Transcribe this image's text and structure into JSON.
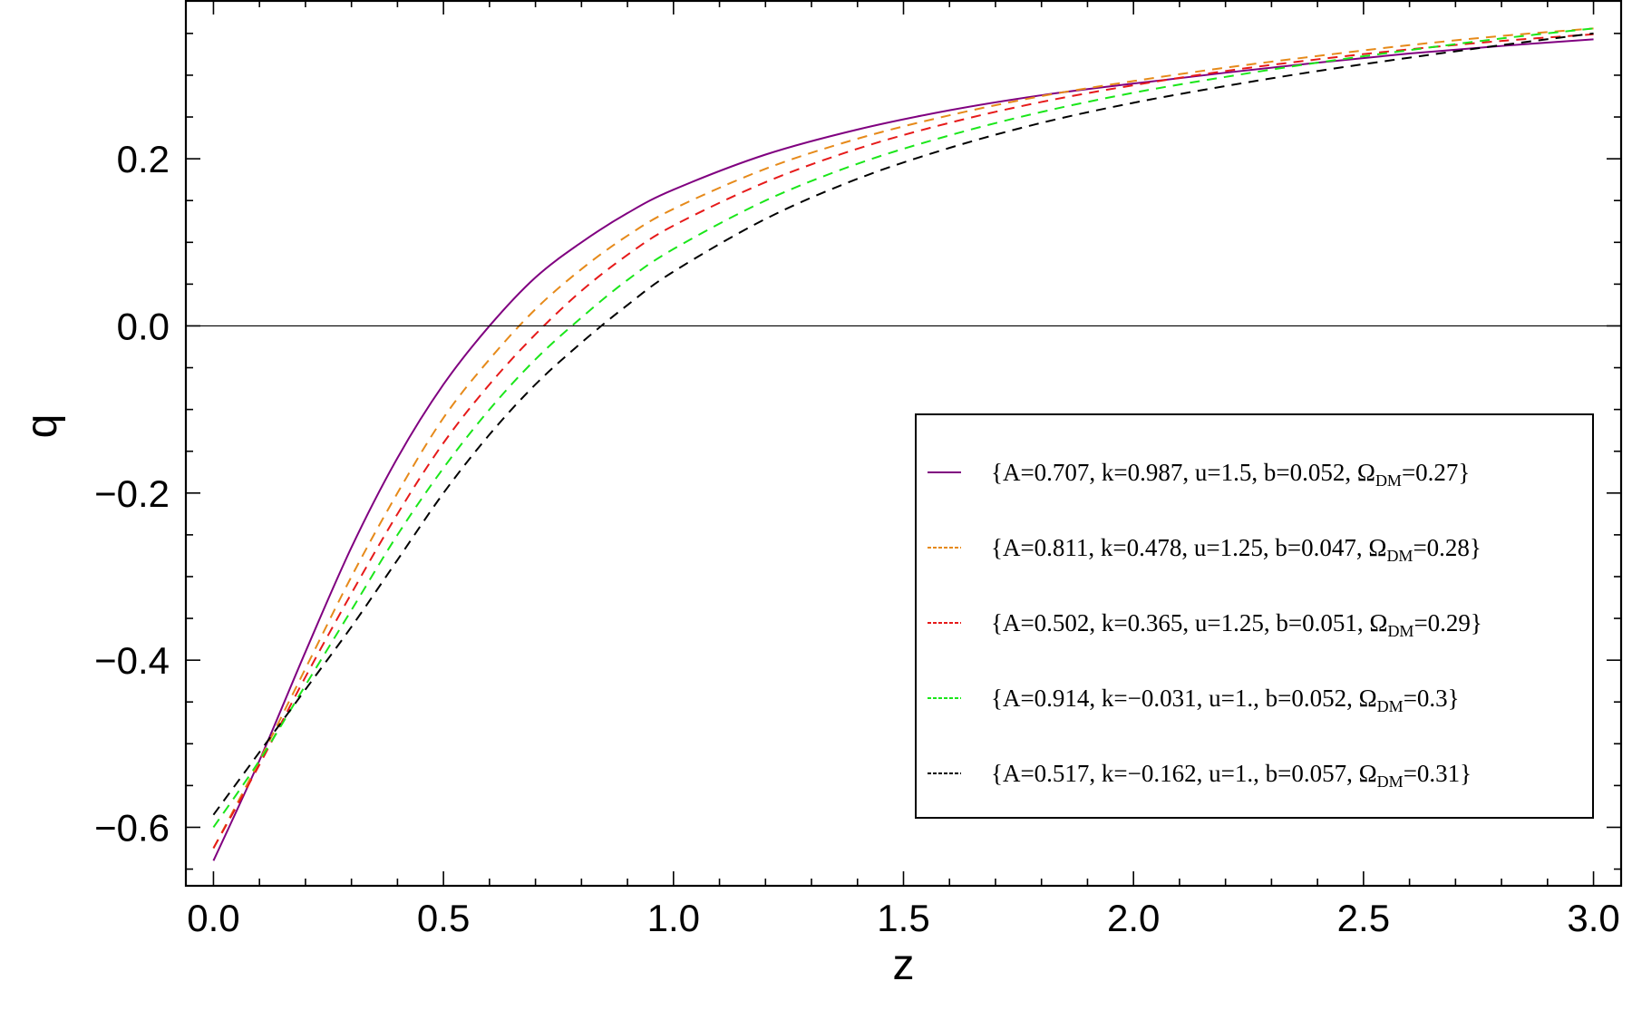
{
  "chart_data": {
    "type": "line",
    "title": "",
    "xlabel": "z",
    "ylabel": "q",
    "xlim": [
      -0.06,
      3.06
    ],
    "ylim": [
      -0.67,
      0.39
    ],
    "x_ticks": [
      {
        "value": 0.0,
        "label": "0.0"
      },
      {
        "value": 0.5,
        "label": "0.5"
      },
      {
        "value": 1.0,
        "label": "1.0"
      },
      {
        "value": 1.5,
        "label": "1.5"
      },
      {
        "value": 2.0,
        "label": "2.0"
      },
      {
        "value": 2.5,
        "label": "2.5"
      },
      {
        "value": 3.0,
        "label": "3.0"
      }
    ],
    "y_ticks": [
      {
        "value": -0.6,
        "label": "−0.6"
      },
      {
        "value": -0.4,
        "label": "−0.4"
      },
      {
        "value": -0.2,
        "label": "−0.2"
      },
      {
        "value": 0.0,
        "label": "0.0"
      },
      {
        "value": 0.2,
        "label": "0.2"
      }
    ],
    "grid": false,
    "reference_line": {
      "y": 0.0,
      "color": "#000000"
    },
    "legend": {
      "placement": "center-right"
    },
    "x": [
      0.0,
      0.1,
      0.2,
      0.3,
      0.4,
      0.5,
      0.6,
      0.7,
      0.8,
      0.9,
      1.0,
      1.2,
      1.4,
      1.6,
      1.8,
      2.0,
      2.2,
      2.4,
      2.6,
      2.8,
      3.0
    ],
    "series": [
      {
        "name": "{A=0.707, k=0.987, u=1.5, b=0.052, ΩDM=0.27}",
        "legend_parts": [
          {
            "text": "{A=0.707, k=0.987, u=1.5, b=0.052, Ω"
          },
          {
            "text": "DM",
            "sub": true
          },
          {
            "text": "=0.27}"
          }
        ],
        "color": "#800080",
        "dash": "solid",
        "values": [
          -0.64,
          -0.52,
          -0.39,
          -0.265,
          -0.158,
          -0.07,
          0.0,
          0.058,
          0.1,
          0.135,
          0.163,
          0.205,
          0.235,
          0.258,
          0.276,
          0.29,
          0.303,
          0.315,
          0.326,
          0.335,
          0.343
        ]
      },
      {
        "name": "{A=0.811, k=0.478, u=1.25, b=0.047, ΩDM=0.28}",
        "legend_parts": [
          {
            "text": "{A=0.811, k=0.478, u=1.25, b=0.047, Ω"
          },
          {
            "text": "DM",
            "sub": true
          },
          {
            "text": "=0.28}"
          }
        ],
        "color": "#e68a1a",
        "dash": "dashed",
        "values": [
          -0.625,
          -0.52,
          -0.41,
          -0.3,
          -0.2,
          -0.11,
          -0.04,
          0.02,
          0.068,
          0.108,
          0.14,
          0.188,
          0.224,
          0.252,
          0.275,
          0.293,
          0.309,
          0.323,
          0.336,
          0.347,
          0.356
        ]
      },
      {
        "name": "{A=0.502, k=0.365, u=1.25, b=0.051, ΩDM=0.29}",
        "legend_parts": [
          {
            "text": "{A=0.502, k=0.365, u=1.25, b=0.051, Ω"
          },
          {
            "text": "DM",
            "sub": true
          },
          {
            "text": "=0.29}"
          }
        ],
        "color": "#e61a1a",
        "dash": "dashed",
        "values": [
          -0.625,
          -0.525,
          -0.42,
          -0.32,
          -0.225,
          -0.14,
          -0.07,
          -0.01,
          0.042,
          0.085,
          0.12,
          0.172,
          0.212,
          0.243,
          0.268,
          0.288,
          0.305,
          0.319,
          0.331,
          0.341,
          0.349
        ]
      },
      {
        "name": "{A=0.914, k=−0.031, u=1., b=0.052, ΩDM=0.3}",
        "legend_parts": [
          {
            "text": "{A=0.914, k=−0.031, u=1., b=0.052, Ω"
          },
          {
            "text": "DM",
            "sub": true
          },
          {
            "text": "=0.3}"
          }
        ],
        "color": "#1ae61a",
        "dash": "dashed",
        "values": [
          -0.6,
          -0.52,
          -0.43,
          -0.34,
          -0.25,
          -0.17,
          -0.1,
          -0.04,
          0.01,
          0.055,
          0.092,
          0.15,
          0.194,
          0.228,
          0.256,
          0.279,
          0.298,
          0.315,
          0.33,
          0.344,
          0.356
        ]
      },
      {
        "name": "{A=0.517, k=−0.162, u=1., b=0.057, ΩDM=0.31}",
        "legend_parts": [
          {
            "text": "{A=0.517, k=−0.162, u=1., b=0.057, Ω"
          },
          {
            "text": "DM",
            "sub": true
          },
          {
            "text": "=0.31}"
          }
        ],
        "color": "#000000",
        "dash": "dashed",
        "values": [
          -0.585,
          -0.51,
          -0.435,
          -0.36,
          -0.28,
          -0.2,
          -0.13,
          -0.07,
          -0.02,
          0.025,
          0.065,
          0.128,
          0.176,
          0.213,
          0.243,
          0.267,
          0.287,
          0.305,
          0.321,
          0.336,
          0.35
        ]
      }
    ]
  }
}
